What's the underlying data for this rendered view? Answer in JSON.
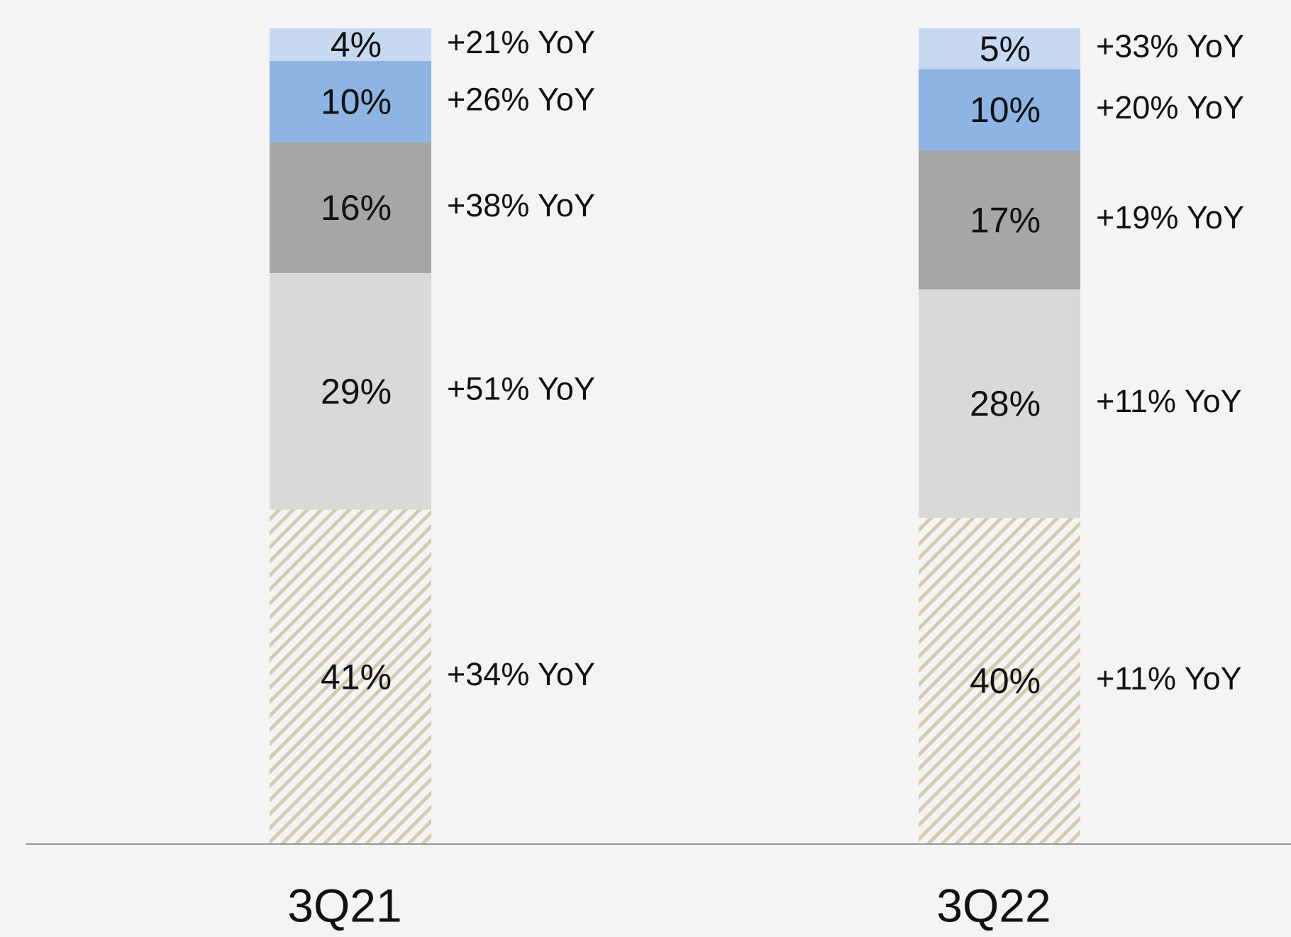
{
  "chart_data": {
    "type": "stacked_bar",
    "categories": [
      "3Q21",
      "3Q22"
    ],
    "series": [
      {
        "color": "#d3cbb0",
        "pattern": "hatch",
        "values": [
          41,
          40
        ],
        "value_labels": [
          "41%",
          "40%"
        ],
        "yoy_labels": [
          "+34% YoY",
          "+11% YoY"
        ]
      },
      {
        "color": "#d9d9d9",
        "values": [
          29,
          28
        ],
        "value_labels": [
          "29%",
          "28%"
        ],
        "yoy_labels": [
          "+51% YoY",
          "+11% YoY"
        ]
      },
      {
        "color": "#a6a6a6",
        "values": [
          16,
          17
        ],
        "value_labels": [
          "16%",
          "17%"
        ],
        "yoy_labels": [
          "+38% YoY",
          "+19% YoY"
        ]
      },
      {
        "color": "#8eb4e3",
        "values": [
          10,
          10
        ],
        "value_labels": [
          "10%",
          "10%"
        ],
        "yoy_labels": [
          "+26% YoY",
          "+20% YoY"
        ]
      },
      {
        "color": "#c6d9f1",
        "values": [
          4,
          5
        ],
        "value_labels": [
          "4%",
          "5%"
        ],
        "yoy_labels": [
          "+21% YoY",
          "+33% YoY"
        ]
      }
    ]
  }
}
